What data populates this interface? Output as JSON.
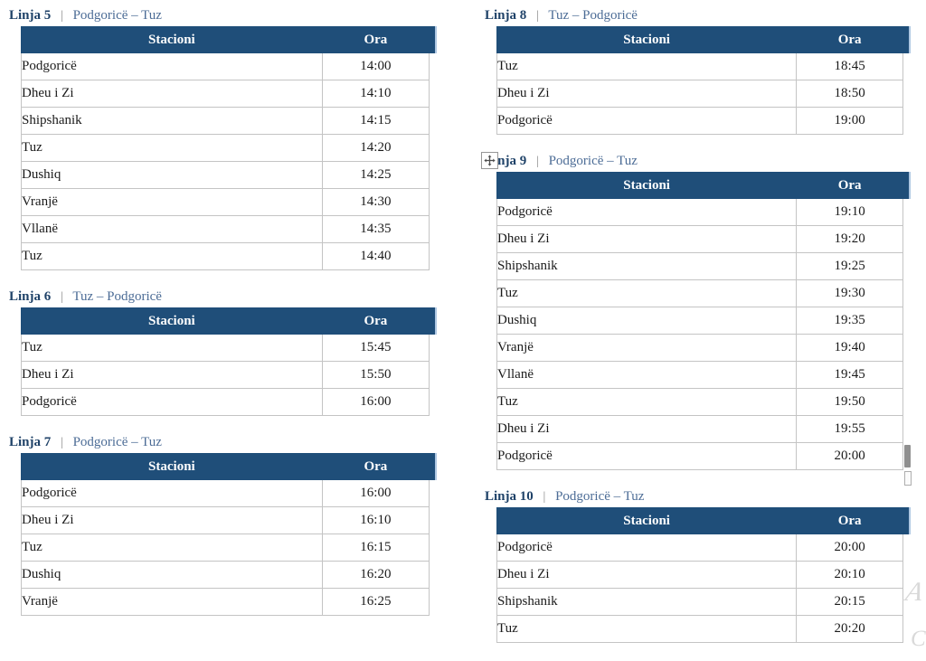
{
  "caption": {
    "separator": "|"
  },
  "columns": {
    "station": "Stacioni",
    "time": "Ora"
  },
  "tables": [
    {
      "line": "Linja 5",
      "route": "Podgoricë – Tuz",
      "column": "left",
      "has_move_handle": false,
      "rows": [
        {
          "station": "Podgoricë",
          "time": "14:00"
        },
        {
          "station": "Dheu i Zi",
          "time": "14:10"
        },
        {
          "station": "Shipshanik",
          "time": "14:15"
        },
        {
          "station": "Tuz",
          "time": "14:20"
        },
        {
          "station": "Dushiq",
          "time": "14:25"
        },
        {
          "station": "Vranjë",
          "time": "14:30"
        },
        {
          "station": "Vllanë",
          "time": "14:35"
        },
        {
          "station": "Tuz",
          "time": "14:40"
        }
      ]
    },
    {
      "line": "Linja 6",
      "route": "Tuz – Podgoricë",
      "column": "left",
      "has_move_handle": false,
      "rows": [
        {
          "station": "Tuz",
          "time": "15:45"
        },
        {
          "station": "Dheu i Zi",
          "time": "15:50"
        },
        {
          "station": "Podgoricë",
          "time": "16:00"
        }
      ]
    },
    {
      "line": "Linja 7",
      "route": "Podgoricë – Tuz",
      "column": "left",
      "has_move_handle": false,
      "rows": [
        {
          "station": "Podgoricë",
          "time": "16:00"
        },
        {
          "station": "Dheu i Zi",
          "time": "16:10"
        },
        {
          "station": "Tuz",
          "time": "16:15"
        },
        {
          "station": "Dushiq",
          "time": "16:20"
        },
        {
          "station": "Vranjë",
          "time": "16:25"
        }
      ]
    },
    {
      "line": "Linja 8",
      "route": "Tuz – Podgoricë",
      "column": "right",
      "has_move_handle": false,
      "rows": [
        {
          "station": "Tuz",
          "time": "18:45"
        },
        {
          "station": "Dheu i Zi",
          "time": "18:50"
        },
        {
          "station": "Podgoricë",
          "time": "19:00"
        }
      ]
    },
    {
      "line": "Linja 9",
      "route": "Podgoricë – Tuz",
      "column": "right",
      "has_move_handle": true,
      "rows": [
        {
          "station": "Podgoricë",
          "time": "19:10"
        },
        {
          "station": "Dheu i Zi",
          "time": "19:20"
        },
        {
          "station": "Shipshanik",
          "time": "19:25"
        },
        {
          "station": "Tuz",
          "time": "19:30"
        },
        {
          "station": "Dushiq",
          "time": "19:35"
        },
        {
          "station": "Vranjë",
          "time": "19:40"
        },
        {
          "station": "Vllanë",
          "time": "19:45"
        },
        {
          "station": "Tuz",
          "time": "19:50"
        },
        {
          "station": "Dheu i Zi",
          "time": "19:55"
        },
        {
          "station": "Podgoricë",
          "time": "20:00"
        }
      ]
    },
    {
      "line": "Linja 10",
      "route": "Podgoricë – Tuz",
      "column": "right",
      "has_move_handle": false,
      "rows": [
        {
          "station": "Podgoricë",
          "time": "20:00"
        },
        {
          "station": "Dheu i Zi",
          "time": "20:10"
        },
        {
          "station": "Shipshanik",
          "time": "20:15"
        },
        {
          "station": "Tuz",
          "time": "20:20"
        }
      ]
    }
  ],
  "icons": {
    "table_move_handle": "move-icon"
  },
  "artifacts": {
    "edge_letter_1": "A",
    "edge_letter_2": "C"
  },
  "colors": {
    "header_bg": "#1F4E79",
    "header_text": "#FFFFFF",
    "caption_line": "#1F4268",
    "caption_route": "#4C6C96",
    "caption_separator": "#8A8A8A",
    "row_border": "#C4C4C4",
    "header_notch_edge": "#AEC7E2",
    "scroll_fragment": "#8F8F8F",
    "watermark": "#D9D9D9"
  }
}
